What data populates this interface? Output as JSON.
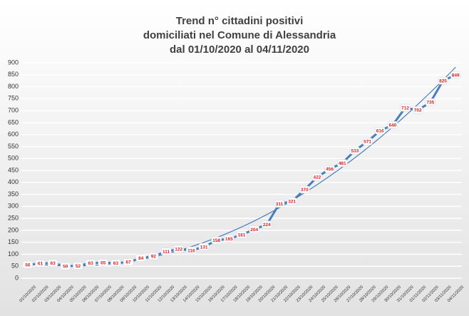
{
  "chart_data": {
    "type": "line",
    "title": [
      "Trend n° cittadini positivi",
      "domiciliati nel Comune di Alessandria",
      "dal 01/10/2020 al 04/11/2020"
    ],
    "categories": [
      "01/10/2020",
      "02/10/2020",
      "03/10/2020",
      "04/10/2020",
      "05/10/2020",
      "06/10/2020",
      "07/10/2020",
      "08/10/2020",
      "09/10/2020",
      "10/10/2020",
      "11/10/2020",
      "12/10/2020",
      "13/10/2020",
      "14/10/2020",
      "15/10/2020",
      "16/10/2020",
      "17/10/2020",
      "18/10/2020",
      "19/10/2020",
      "20/10/2020",
      "21/10/2020",
      "22/10/2020",
      "23/10/2020",
      "24/10/2020",
      "25/10/2020",
      "26/10/2020",
      "27/10/2020",
      "28/10/2020",
      "29/10/2020",
      "30/10/2020",
      "31/10/2020",
      "01/11/2020",
      "02/11/2020",
      "03/11/2020",
      "04/11/2020"
    ],
    "values": [
      56,
      61,
      63,
      50,
      52,
      63,
      65,
      63,
      67,
      84,
      92,
      111,
      122,
      116,
      131,
      158,
      165,
      181,
      204,
      224,
      311,
      321,
      370,
      422,
      456,
      481,
      533,
      571,
      616,
      640,
      712,
      702,
      735,
      825,
      849
    ],
    "color": "#4a7ebb",
    "label_color": "#e02020",
    "trendline": true,
    "trend_color": "#4a7ebb",
    "ylim": [
      0,
      900
    ],
    "yticks": [
      0,
      50,
      100,
      150,
      200,
      250,
      300,
      350,
      400,
      450,
      500,
      550,
      600,
      650,
      700,
      750,
      800,
      850,
      900
    ],
    "grid": true
  }
}
